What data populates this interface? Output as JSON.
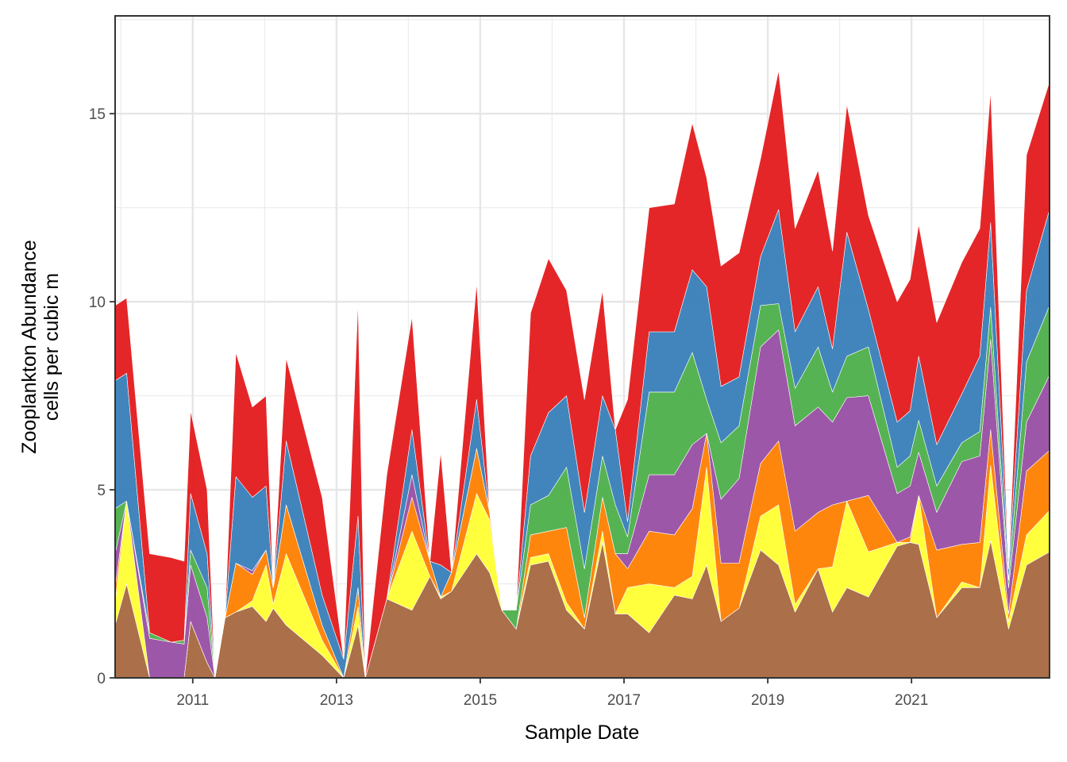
{
  "chart_data": {
    "type": "area",
    "stacked": true,
    "title": "",
    "xlabel": "Sample Date",
    "ylabel_lines": [
      "Zooplankton Abundance",
      "cells per cubic m"
    ],
    "xlim": [
      2009.92,
      2022.92
    ],
    "ylim": [
      0,
      17.6
    ],
    "x_ticks": [
      2011,
      2013,
      2015,
      2017,
      2019,
      2021
    ],
    "x_tick_labels": [
      "2011",
      "2013",
      "2015",
      "2017",
      "2019",
      "2021"
    ],
    "y_ticks": [
      0,
      5,
      10,
      15
    ],
    "y_tick_labels": [
      "0",
      "5",
      "10",
      "15"
    ],
    "grid": true,
    "legend": "none",
    "x": [
      2009.92,
      2010.08,
      2010.4,
      2010.7,
      2010.88,
      2010.97,
      2011.2,
      2011.31,
      2011.45,
      2011.6,
      2011.83,
      2012.02,
      2012.12,
      2012.3,
      2012.8,
      2013.1,
      2013.3,
      2013.4,
      2013.7,
      2014.05,
      2014.3,
      2014.45,
      2014.6,
      2014.95,
      2015.13,
      2015.3,
      2015.5,
      2015.7,
      2015.95,
      2016.2,
      2016.45,
      2016.7,
      2016.88,
      2017.05,
      2017.35,
      2017.7,
      2017.95,
      2018.15,
      2018.35,
      2018.6,
      2018.9,
      2019.15,
      2019.38,
      2019.7,
      2019.9,
      2020.1,
      2020.4,
      2020.8,
      2020.98,
      2021.1,
      2021.35,
      2021.7,
      2021.95,
      2022.1,
      2022.35,
      2022.6,
      2022.92
    ],
    "series": [
      {
        "color": "#a6673f",
        "values": [
          1.4,
          2.5,
          0,
          0,
          0,
          1.5,
          0.4,
          0,
          1.6,
          1.75,
          1.9,
          1.5,
          1.85,
          1.4,
          0.6,
          0,
          1.4,
          0,
          2.1,
          1.8,
          2.7,
          2.1,
          2.3,
          3.3,
          2.8,
          1.8,
          1.3,
          3,
          3.1,
          1.8,
          1.3,
          3.6,
          1.7,
          1.7,
          1.2,
          2.2,
          2.1,
          3,
          1.5,
          1.85,
          3.4,
          3,
          1.75,
          2.9,
          1.75,
          2.4,
          2.15,
          3.5,
          3.6,
          3.55,
          1.6,
          2.4,
          2.4,
          3.65,
          1.3,
          3,
          3.35
        ]
      },
      {
        "color": "#ffff33",
        "values": [
          0.6,
          2.2,
          0,
          0,
          0,
          0,
          0,
          0,
          0,
          0,
          0.15,
          1.5,
          0.1,
          1.9,
          0.4,
          0,
          0.5,
          0,
          0,
          2.1,
          0,
          0.05,
          0,
          1.6,
          1.4,
          0,
          0,
          0.2,
          0.2,
          0.2,
          0,
          0.3,
          0,
          0.7,
          1.3,
          0.2,
          0.6,
          2.6,
          0,
          0,
          0.9,
          1.6,
          0.2,
          0,
          1.2,
          2.3,
          1.2,
          0.1,
          0,
          1.3,
          0,
          0.15,
          0,
          2,
          0.2,
          0.8,
          1.1
        ]
      },
      {
        "color": "#ff7f00",
        "values": [
          0.4,
          0,
          0,
          0,
          0,
          0,
          0,
          0,
          0,
          1.3,
          0.7,
          0.4,
          0.45,
          1.3,
          0.4,
          0,
          0.5,
          0,
          0,
          0.9,
          0.4,
          0,
          0.5,
          1.2,
          0.2,
          0,
          0,
          0.6,
          0.6,
          2.0,
          0.3,
          0.9,
          1.6,
          0.5,
          1.4,
          1.4,
          1.8,
          0.9,
          1.55,
          1.2,
          1.4,
          1.7,
          1.95,
          1.5,
          1.65,
          0,
          1.5,
          0,
          0.15,
          0,
          1.8,
          1.0,
          1.2,
          0.95,
          0.2,
          1.7,
          1.6
        ]
      },
      {
        "color": "#984ea3",
        "values": [
          0.9,
          0,
          1.05,
          0.95,
          0.9,
          1.5,
          1.2,
          0,
          0,
          0,
          0.1,
          0,
          0,
          0,
          0,
          0,
          0,
          0,
          0,
          0.6,
          0,
          0,
          0,
          0,
          0,
          0,
          0,
          0,
          0,
          0,
          0,
          0,
          0,
          0.4,
          1.5,
          1.6,
          1.7,
          0,
          1.7,
          2.25,
          3.1,
          2.95,
          2.8,
          2.8,
          2.2,
          2.75,
          2.65,
          1.3,
          1.35,
          1.15,
          1.0,
          2.2,
          2.3,
          2.4,
          0.7,
          1.3,
          2.0
        ]
      },
      {
        "color": "#4daf4a",
        "values": [
          1.2,
          0,
          0.15,
          0,
          0.1,
          0.4,
          0.8,
          0,
          0,
          0,
          0,
          0,
          0,
          0,
          0,
          0,
          0,
          0,
          0,
          0,
          0,
          0,
          0,
          0,
          0,
          0,
          0.5,
          0.8,
          0.95,
          1.6,
          1.3,
          1.1,
          1.3,
          0.45,
          2.2,
          2.2,
          2.45,
          0.9,
          1.5,
          1.4,
          1.1,
          0.7,
          1.0,
          1.6,
          0.8,
          1.1,
          1.3,
          0.7,
          0.8,
          0.85,
          0.7,
          0.5,
          0.65,
          0.85,
          0.2,
          1.6,
          1.85
        ]
      },
      {
        "color": "#377eb8",
        "values": [
          3.4,
          3.4,
          0,
          0,
          0,
          1.5,
          0.9,
          0,
          0,
          2.3,
          1.95,
          1.7,
          0,
          1.7,
          0.8,
          0.5,
          1.9,
          0,
          0,
          1.2,
          0,
          0.85,
          0,
          1.3,
          0,
          0,
          0,
          1.3,
          2.2,
          1.9,
          1.5,
          1.6,
          2.0,
          0.4,
          1.6,
          1.6,
          2.2,
          3.0,
          1.5,
          1.3,
          1.3,
          2.5,
          1.5,
          1.6,
          1.15,
          3.3,
          1.0,
          1.2,
          1.2,
          1.7,
          1.1,
          1.3,
          2.0,
          2.25,
          0.3,
          1.9,
          2.55
        ]
      },
      {
        "color": "#e41a1c",
        "values": [
          2.0,
          2.0,
          2.1,
          2.25,
          2.1,
          2.2,
          1.7,
          0,
          0,
          3.3,
          2.4,
          2.4,
          0,
          2.2,
          2.6,
          0,
          5.7,
          0,
          3.3,
          3.0,
          0,
          3.0,
          0,
          3.1,
          0,
          0,
          0,
          3.8,
          4.1,
          2.8,
          3.0,
          2.8,
          0,
          3.25,
          3.3,
          3.4,
          3.9,
          2.9,
          3.2,
          3.3,
          2.6,
          3.7,
          2.75,
          3.1,
          2.6,
          3.4,
          2.5,
          3.2,
          3.5,
          3.5,
          3.25,
          3.5,
          3.4,
          3.5,
          0,
          3.6,
          3.4
        ]
      }
    ]
  }
}
